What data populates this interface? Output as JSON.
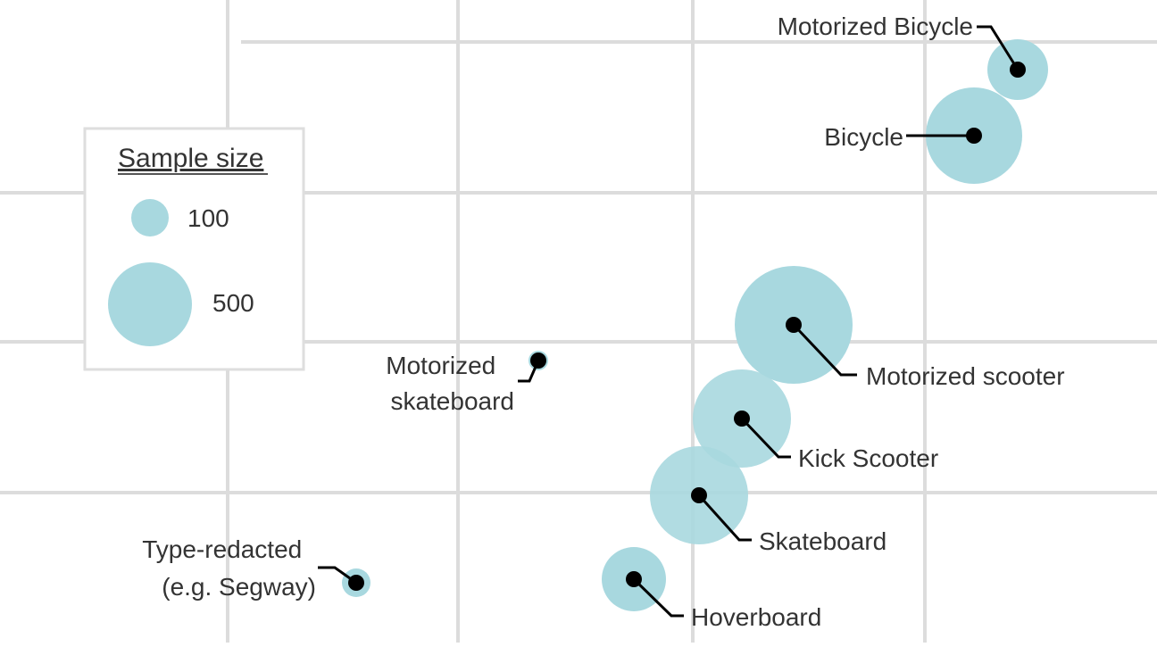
{
  "chart_data": {
    "type": "scatter",
    "grid": true,
    "bubble_color": "#a8d8df",
    "dot_color": "#000000",
    "grid_color": "#dcdcdc",
    "legend": {
      "title": "Sample size",
      "placement": "left",
      "entries": [
        {
          "label": "100",
          "size": 100
        },
        {
          "label": "500",
          "size": 500
        }
      ]
    },
    "points": [
      {
        "label": "Motorized Bicycle",
        "size": 130
      },
      {
        "label": "Bicycle",
        "size": 620
      },
      {
        "label": "Motorized scooter",
        "size": 950
      },
      {
        "label": "Motorized skateboard",
        "size": 2
      },
      {
        "label": "Kick Scooter",
        "size": 640
      },
      {
        "label": "Skateboard",
        "size": 610
      },
      {
        "label": "Type-redacted (e.g. Segway)",
        "size": 40
      },
      {
        "label": "Hoverboard",
        "size": 260
      }
    ]
  }
}
